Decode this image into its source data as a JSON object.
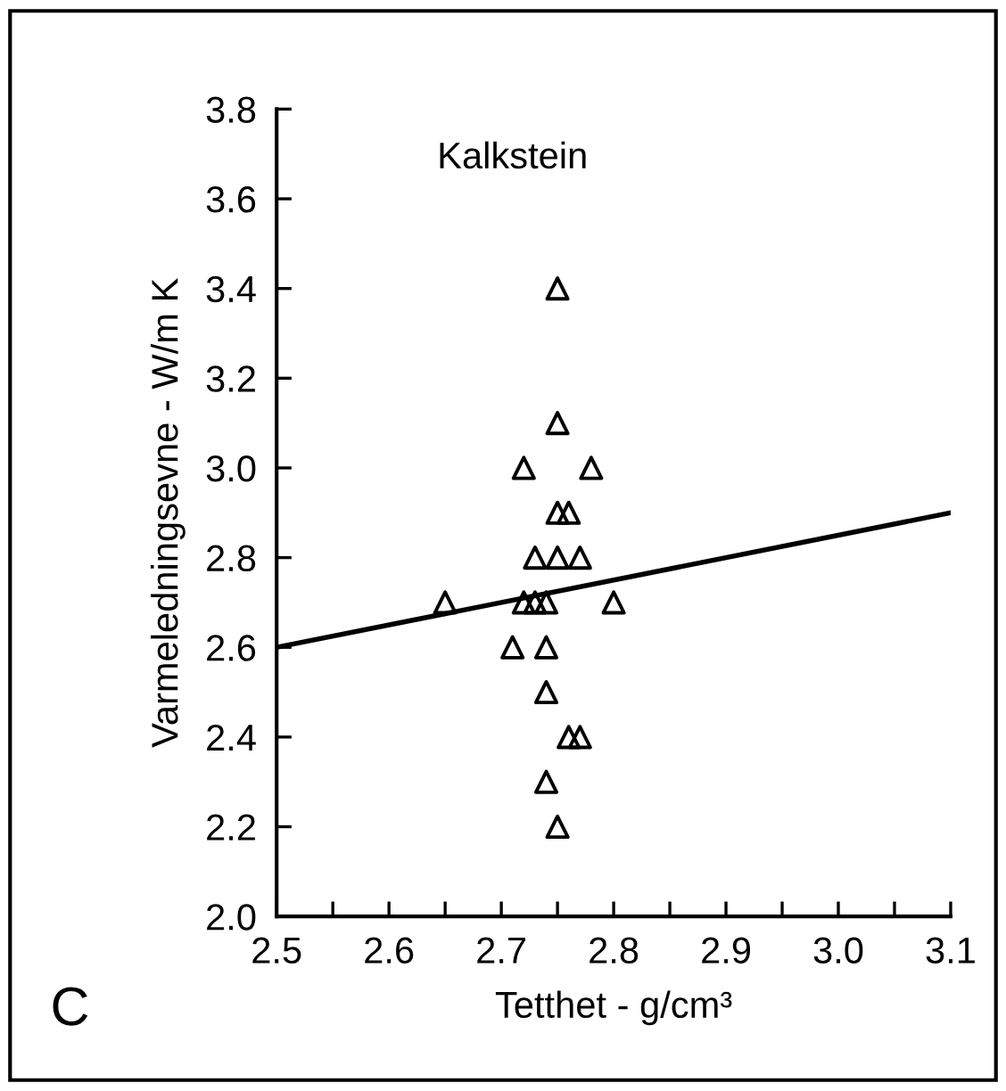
{
  "chart_data": {
    "type": "scatter",
    "xlabel": "Tetthet - g/cm³",
    "ylabel": "Varmeledningsevne - W/m K",
    "annotations": [
      "Kalkstein",
      "C"
    ],
    "series": [
      {
        "color": "#000000",
        "marker": "triangle",
        "x": [
          2.65,
          2.75,
          2.75,
          2.72,
          2.78,
          2.75,
          2.76,
          2.73,
          2.75,
          2.77,
          2.72,
          2.73,
          2.74,
          2.8,
          2.71,
          2.74,
          2.74,
          2.76,
          2.77,
          2.74,
          2.75
        ],
        "values": [
          2.7,
          3.4,
          3.1,
          3.0,
          3.0,
          2.9,
          2.9,
          2.8,
          2.8,
          2.8,
          2.7,
          2.7,
          2.7,
          2.7,
          2.6,
          2.6,
          2.5,
          2.4,
          2.4,
          2.3,
          2.2
        ]
      },
      {
        "type": "line",
        "color": "#000000",
        "x": [
          2.5,
          3.1
        ],
        "values": [
          2.6,
          2.9
        ]
      }
    ],
    "xlim": [
      2.5,
      3.1
    ],
    "ylim": [
      2.0,
      3.8
    ],
    "xticks": [
      {
        "value": 2.5,
        "label": "2.5"
      },
      {
        "value": 2.55,
        "label": null
      },
      {
        "value": 2.6,
        "label": "2.6"
      },
      {
        "value": 2.65,
        "label": null
      },
      {
        "value": 2.7,
        "label": "2.7"
      },
      {
        "value": 2.75,
        "label": null
      },
      {
        "value": 2.8,
        "label": "2.8"
      },
      {
        "value": 2.85,
        "label": null
      },
      {
        "value": 2.9,
        "label": "2.9"
      },
      {
        "value": 2.95,
        "label": null
      },
      {
        "value": 3.0,
        "label": "3.0"
      },
      {
        "value": 3.05,
        "label": null
      },
      {
        "value": 3.1,
        "label": "3.1"
      }
    ],
    "yticks": [
      {
        "value": 2.0,
        "label": "2.0"
      },
      {
        "value": 2.2,
        "label": "2.2"
      },
      {
        "value": 2.4,
        "label": "2.4"
      },
      {
        "value": 2.6,
        "label": "2.6"
      },
      {
        "value": 2.8,
        "label": "2.8"
      },
      {
        "value": 3.0,
        "label": "3.0"
      },
      {
        "value": 3.2,
        "label": "3.2"
      },
      {
        "value": 3.4,
        "label": "3.4"
      },
      {
        "value": 3.6,
        "label": "3.6"
      },
      {
        "value": 3.8,
        "label": "3.8"
      }
    ],
    "grid": false,
    "legend": false
  }
}
